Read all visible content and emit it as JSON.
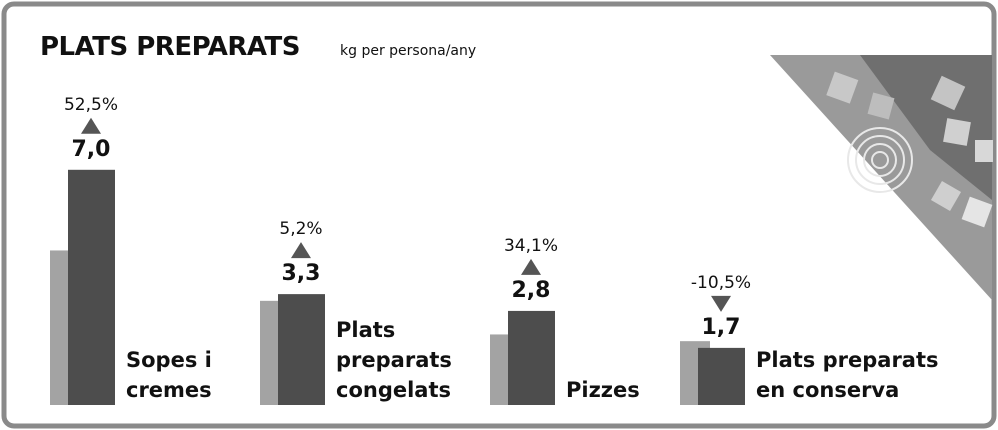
{
  "chart_data": {
    "type": "bar",
    "title": "PLATS PREPARATS",
    "subtitle": "kg per persona/any",
    "categories": [
      [
        "Sopes i",
        "cremes"
      ],
      [
        "Plats",
        "preparats",
        "congelats"
      ],
      [
        "Pizzes"
      ],
      [
        "Plats preparats",
        "en conserva"
      ]
    ],
    "series": [
      {
        "color": "#a3a3a3",
        "values": [
          4.6,
          3.1,
          2.1,
          1.9
        ]
      },
      {
        "color": "#4d4d4d",
        "values": [
          7.0,
          3.3,
          2.8,
          1.7
        ],
        "value_labels": [
          "7,0",
          "3,3",
          "2,8",
          "1,7"
        ]
      }
    ],
    "changes": [
      52.5,
      5.2,
      34.1,
      -10.5
    ],
    "change_labels": [
      "52,5%",
      "5,2%",
      "34,1%",
      "-10,5%"
    ]
  }
}
